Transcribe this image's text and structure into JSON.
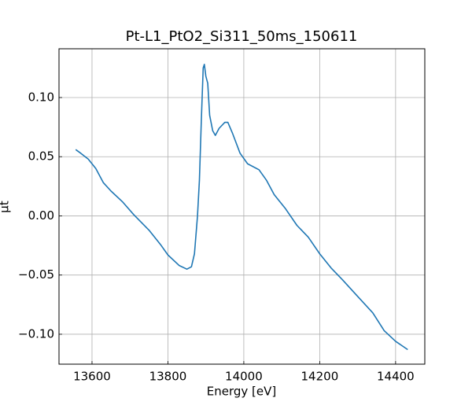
{
  "chart_data": {
    "type": "line",
    "title": "Pt-L1_PtO2_Si311_50ms_150611",
    "x_label": "Energy [eV]",
    "y_label": "μt",
    "x": [
      13557,
      13570,
      13590,
      13610,
      13630,
      13650,
      13680,
      13710,
      13750,
      13780,
      13800,
      13830,
      13850,
      13862,
      13870,
      13878,
      13883,
      13888,
      13893,
      13896,
      13900,
      13905,
      13910,
      13918,
      13925,
      13935,
      13950,
      13958,
      13970,
      13990,
      14010,
      14040,
      14060,
      14080,
      14110,
      14140,
      14170,
      14200,
      14230,
      14260,
      14300,
      14340,
      14370,
      14400,
      14432
    ],
    "series": [
      {
        "name": "Pt-L1_PtO2_Si311_50ms_150611",
        "color": "#1f77b4",
        "values": [
          0.056,
          0.053,
          0.048,
          0.04,
          0.028,
          0.021,
          0.012,
          0.001,
          -0.012,
          -0.024,
          -0.033,
          -0.042,
          -0.045,
          -0.043,
          -0.032,
          0.0,
          0.03,
          0.08,
          0.125,
          0.128,
          0.118,
          0.112,
          0.085,
          0.072,
          0.068,
          0.074,
          0.079,
          0.079,
          0.07,
          0.053,
          0.044,
          0.039,
          0.03,
          0.018,
          0.006,
          -0.008,
          -0.018,
          -0.032,
          -0.044,
          -0.054,
          -0.068,
          -0.082,
          -0.097,
          -0.106,
          -0.113
        ]
      }
    ],
    "xlim": [
      13513,
      14477
    ],
    "xticks": [
      13600,
      13800,
      14000,
      14200,
      14400
    ],
    "ylim": [
      -0.1253,
      0.1412
    ],
    "yticks": [
      {
        "value": -0.1,
        "label": "−0.10"
      },
      {
        "value": -0.05,
        "label": "−0.05"
      },
      {
        "value": 0,
        "label": "0.00"
      },
      {
        "value": 0.05,
        "label": "0.05"
      },
      {
        "value": 0.1,
        "label": "0.10"
      }
    ],
    "grid": true
  }
}
